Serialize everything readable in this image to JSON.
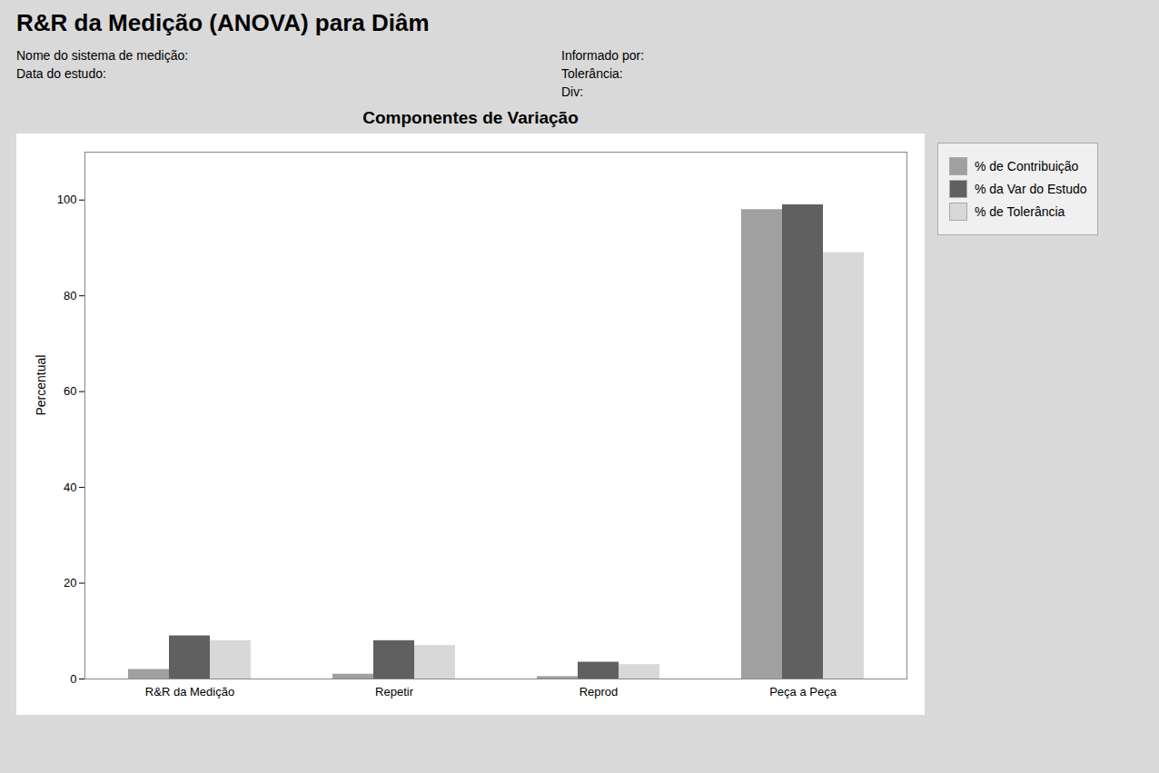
{
  "chart_data": {
    "type": "bar",
    "title": "R&R da Medição (ANOVA) para Diâm",
    "subtitle": "Componentes de Variação",
    "annotations": [
      "Nome do sistema de medição:",
      "Data do estudo:",
      "Informado por:",
      "Tolerância:",
      "Div:"
    ],
    "y_label": "Percentual",
    "categories": [
      "R&R da Medição",
      "Repetir",
      "Reprod",
      "Peça a Peça"
    ],
    "series": [
      {
        "name": "% de Contribuição",
        "color": "#a0a0a0",
        "values": [
          2.0,
          1.0,
          0.5,
          98.0
        ]
      },
      {
        "name": "% da Var do Estudo",
        "color": "#606060",
        "values": [
          9.0,
          8.0,
          3.5,
          99.0
        ]
      },
      {
        "name": "% de Tolerância",
        "color": "#d8d8d8",
        "values": [
          8.0,
          7.0,
          3.0,
          89.0
        ]
      }
    ],
    "ylim": [
      0,
      110
    ],
    "yticks": [
      0,
      20,
      40,
      60,
      80,
      100
    ],
    "grid": false,
    "legend": "upper right"
  }
}
